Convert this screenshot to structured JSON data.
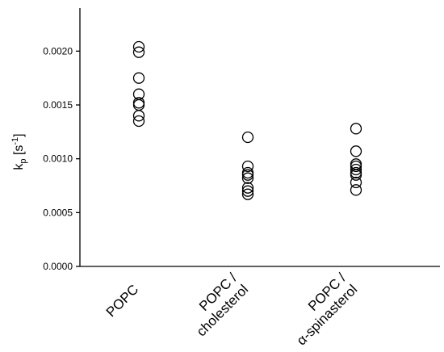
{
  "chart_data": {
    "type": "scatter",
    "title": "",
    "xlabel": "",
    "ylabel": {
      "main": "k",
      "subscript": "p",
      "unit_open": " [s",
      "unit_sup": "-1",
      "unit_close": "]"
    },
    "ylim": [
      0,
      0.0024
    ],
    "yticks": [
      {
        "value": 0.0,
        "label": "0.0000"
      },
      {
        "value": 0.0005,
        "label": "0.0005"
      },
      {
        "value": 0.001,
        "label": "0.0010"
      },
      {
        "value": 0.0015,
        "label": "0.0015"
      },
      {
        "value": 0.002,
        "label": "0.0020"
      }
    ],
    "grid": false,
    "legend": "none",
    "categories": [
      {
        "lines": [
          "POPC"
        ],
        "values": [
          0.00204,
          0.00199,
          0.00175,
          0.0016,
          0.00152,
          0.0015,
          0.0014,
          0.00135
        ]
      },
      {
        "lines": [
          "POPC /",
          "cholesterol"
        ],
        "values": [
          0.0012,
          0.00093,
          0.00087,
          0.00085,
          0.00082,
          0.00073,
          0.0007,
          0.00067
        ]
      },
      {
        "lines": [
          "POPC /",
          "α-spinasterol"
        ],
        "values": [
          0.00128,
          0.00107,
          0.00095,
          0.00093,
          0.0009,
          0.00087,
          0.00085,
          0.00078,
          0.00071
        ]
      }
    ]
  }
}
